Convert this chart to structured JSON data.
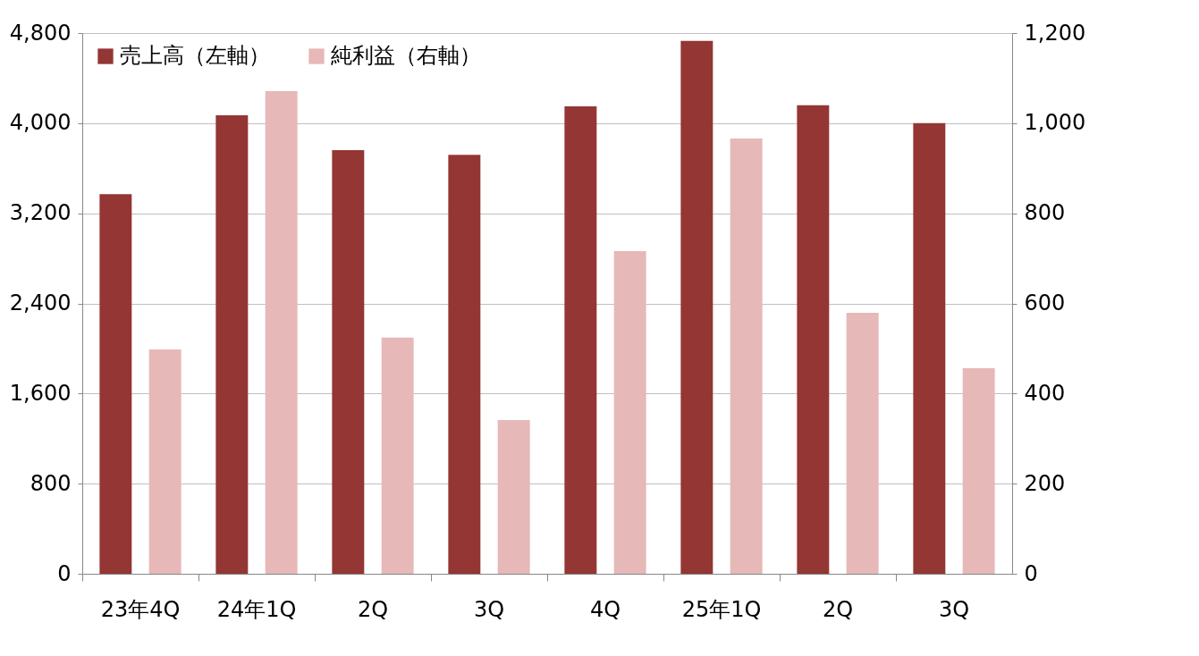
{
  "chart_data": {
    "type": "bar",
    "categories": [
      "23年4Q",
      "24年1Q",
      "2Q",
      "3Q",
      "4Q",
      "25年1Q",
      "2Q",
      "3Q"
    ],
    "series": [
      {
        "name": "売上高（左軸）",
        "color": "#943634",
        "values": [
          3370,
          4070,
          3760,
          3720,
          4150,
          4730,
          4160,
          4000
        ]
      },
      {
        "name": "純利益（右軸）",
        "color": "#e6b8b7",
        "axis": "y2",
        "values": [
          498,
          1071,
          524,
          341,
          716,
          966,
          579,
          456
        ]
      }
    ],
    "ylim": [
      0,
      4800
    ],
    "yticks": [
      0,
      800,
      {
        "value": 1600,
        "label": "1,600"
      },
      {
        "value": 2400,
        "label": "2,400"
      },
      {
        "value": 3200,
        "label": "3,200"
      },
      {
        "value": 4000,
        "label": "4,000"
      },
      {
        "value": 4800,
        "label": "4,800"
      }
    ],
    "y2lim": [
      0,
      1200
    ],
    "y2ticks": [
      0,
      200,
      400,
      600,
      800,
      {
        "value": 1000,
        "label": "1,000"
      },
      {
        "value": 1200,
        "label": "1,200"
      }
    ],
    "grid": "y",
    "legend": "top left"
  }
}
